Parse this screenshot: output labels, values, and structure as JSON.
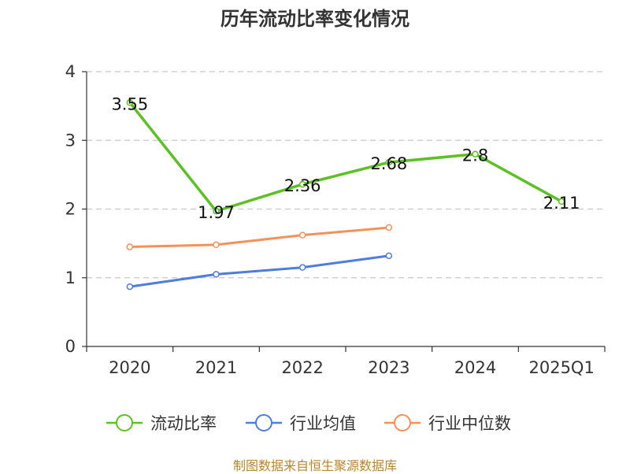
{
  "title": "历年流动比率变化情况",
  "source": "制图数据来自恒生聚源数据库",
  "chart_data": {
    "type": "line",
    "title": "历年流动比率变化情况",
    "categories": [
      "2020",
      "2021",
      "2022",
      "2023",
      "2024",
      "2025Q1"
    ],
    "ylim": [
      0,
      4
    ],
    "yticks": [
      "0",
      "1",
      "2",
      "3",
      "4"
    ],
    "grid": true,
    "legend_position": "bottom",
    "series": [
      {
        "name": "流动比率",
        "color": "#5cc125",
        "values": [
          3.55,
          1.97,
          2.36,
          2.68,
          2.8,
          2.11
        ],
        "labels": [
          "3.55",
          "1.97",
          "2.36",
          "2.68",
          "2.8",
          "2.11"
        ],
        "show_labels": true
      },
      {
        "name": "行业均值",
        "color": "#4e7ddb",
        "values": [
          0.87,
          1.05,
          1.15,
          1.32,
          null,
          null
        ],
        "show_labels": false
      },
      {
        "name": "行业中位数",
        "color": "#f4915a",
        "values": [
          1.45,
          1.48,
          1.62,
          1.73,
          null,
          null
        ],
        "show_labels": false
      }
    ]
  }
}
